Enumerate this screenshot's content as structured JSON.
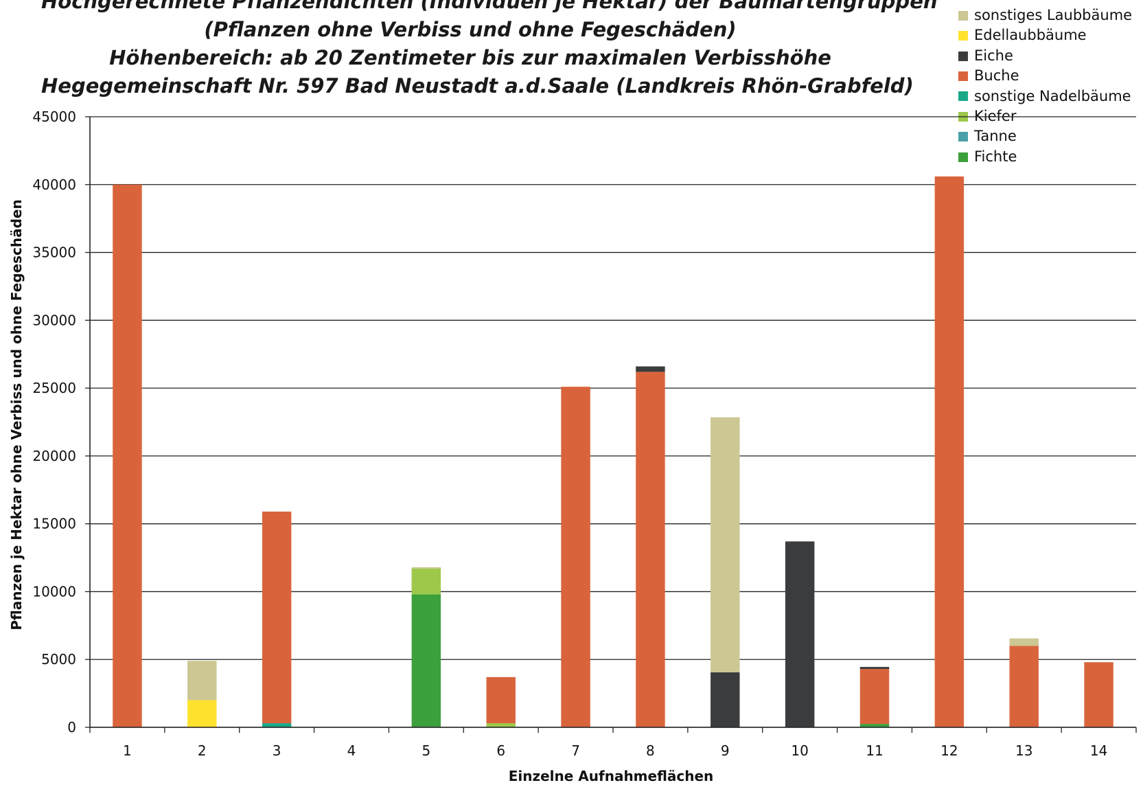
{
  "chart_data": {
    "type": "bar",
    "stacked": true,
    "title_lines": [
      "Hochgerechnete Pflanzendichten (Individuen je Hektar) der Baumartengruppen",
      "(Pflanzen ohne Verbiss und ohne Fegeschäden)",
      "Höhenbereich: ab 20 Zentimeter bis zur maximalen Verbisshöhe",
      "Hegegemeinschaft Nr. 597 Bad Neustadt a.d.Saale (Landkreis Rhön-Grabfeld)"
    ],
    "xlabel": "Einzelne Aufnahmeflächen",
    "ylabel": "Pflanzen je Hektar ohne Verbiss und ohne Fegeschäden",
    "ylim": [
      0,
      45000
    ],
    "yticks": [
      0,
      5000,
      10000,
      15000,
      20000,
      25000,
      30000,
      35000,
      40000,
      45000
    ],
    "grid": true,
    "legend_position": "top-right",
    "categories": [
      "1",
      "2",
      "3",
      "4",
      "5",
      "6",
      "7",
      "8",
      "9",
      "10",
      "11",
      "12",
      "13",
      "14"
    ],
    "series": [
      {
        "name": "Fichte",
        "color": "#3ca03c",
        "values": [
          0,
          0,
          0,
          0,
          9800,
          0,
          0,
          0,
          0,
          0,
          250,
          0,
          0,
          0
        ]
      },
      {
        "name": "Tanne",
        "color": "#4aa0a8",
        "values": [
          0,
          0,
          0,
          0,
          0,
          0,
          0,
          0,
          0,
          0,
          0,
          0,
          0,
          0
        ]
      },
      {
        "name": "Kiefer",
        "color": "#9dc84a",
        "values": [
          0,
          0,
          0,
          0,
          1900,
          300,
          0,
          0,
          0,
          0,
          0,
          0,
          0,
          0
        ]
      },
      {
        "name": "sonstige Nadelbäume",
        "color": "#1aa888",
        "values": [
          0,
          0,
          300,
          0,
          0,
          0,
          0,
          0,
          0,
          0,
          0,
          0,
          0,
          0
        ]
      },
      {
        "name": "Buche",
        "color": "#d9643c",
        "values": [
          40000,
          0,
          15600,
          0,
          0,
          3400,
          25100,
          26200,
          0,
          0,
          4050,
          40600,
          6000,
          4800
        ]
      },
      {
        "name": "Eiche",
        "color": "#3a3c3e",
        "values": [
          0,
          0,
          0,
          0,
          0,
          0,
          0,
          400,
          4050,
          13700,
          150,
          0,
          0,
          0
        ]
      },
      {
        "name": "Edellaubbäume",
        "color": "#ffe22e",
        "values": [
          0,
          2000,
          0,
          0,
          0,
          0,
          0,
          0,
          0,
          0,
          0,
          0,
          0,
          0
        ]
      },
      {
        "name": "sonstiges Laubbäume",
        "color": "#cdc794",
        "values": [
          0,
          2900,
          0,
          0,
          100,
          0,
          0,
          0,
          18800,
          0,
          0,
          0,
          550,
          0
        ]
      }
    ]
  }
}
